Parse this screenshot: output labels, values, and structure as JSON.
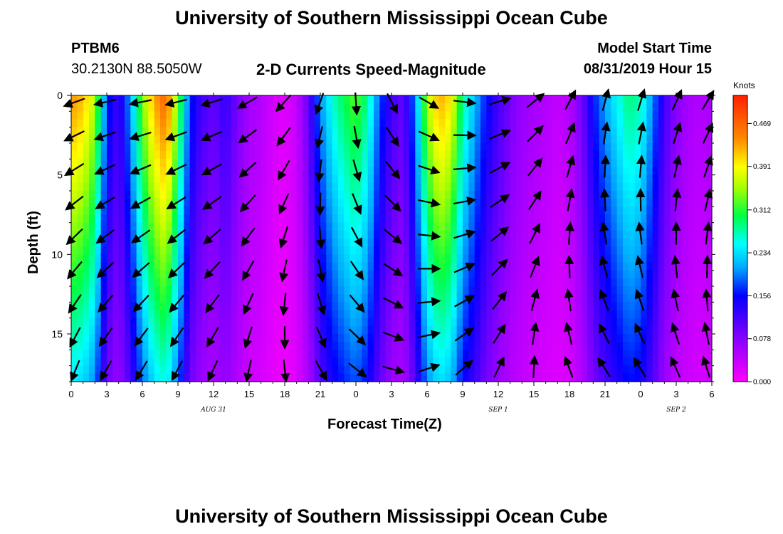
{
  "header": {
    "title_top": "University of Southern Mississippi Ocean Cube",
    "title_bottom": "University of Southern Mississippi Ocean Cube",
    "station": "PTBM6",
    "coords": "30.2130N 88.5050W",
    "model_label": "Model Start Time",
    "model_time": "08/31/2019 Hour 15"
  },
  "chart_data": {
    "type": "heatmap",
    "title": "2-D Currents Speed-Magnitude",
    "xlabel": "Forecast Time(Z)",
    "ylabel": "Depth (ft)",
    "x_tick_labels": [
      "0",
      "3",
      "6",
      "9",
      "12",
      "15",
      "18",
      "21",
      "0",
      "3",
      "6",
      "9",
      "12",
      "15",
      "18",
      "21",
      "0",
      "3",
      "6"
    ],
    "x_range_hours": [
      0,
      54
    ],
    "date_labels": [
      {
        "text": "AUG 31",
        "hour": 12
      },
      {
        "text": "SEP 1",
        "hour": 36
      },
      {
        "text": "SEP 2",
        "hour": 51
      }
    ],
    "y_tick_labels": [
      "0",
      "5",
      "10",
      "15"
    ],
    "y_ticks": [
      0,
      5,
      10,
      15
    ],
    "y_range_ft": [
      0,
      18
    ],
    "colorbar": {
      "unit": "Knots",
      "range": [
        0,
        0.52
      ],
      "tick_values": [
        0.0,
        0.078,
        0.156,
        0.234,
        0.312,
        0.391,
        0.469
      ],
      "tick_labels": [
        "0.000",
        "0.078",
        "0.156",
        "0.234",
        "0.312",
        "0.391",
        "0.469"
      ]
    },
    "grid": false,
    "speed_profile_by_hour": [
      {
        "hour": 0,
        "speed": 0.44
      },
      {
        "hour": 1,
        "speed": 0.42
      },
      {
        "hour": 2,
        "speed": 0.36
      },
      {
        "hour": 3,
        "speed": 0.17
      },
      {
        "hour": 4,
        "speed": 0.12
      },
      {
        "hour": 5,
        "speed": 0.21
      },
      {
        "hour": 6,
        "speed": 0.34
      },
      {
        "hour": 7,
        "speed": 0.43
      },
      {
        "hour": 8,
        "speed": 0.47
      },
      {
        "hour": 9,
        "speed": 0.34
      },
      {
        "hour": 10,
        "speed": 0.17
      },
      {
        "hour": 11,
        "speed": 0.12
      },
      {
        "hour": 12,
        "speed": 0.1
      },
      {
        "hour": 13,
        "speed": 0.13
      },
      {
        "hour": 14,
        "speed": 0.09
      },
      {
        "hour": 15,
        "speed": 0.06
      },
      {
        "hour": 16,
        "speed": 0.05
      },
      {
        "hour": 17,
        "speed": 0.03
      },
      {
        "hour": 18,
        "speed": 0.02
      },
      {
        "hour": 19,
        "speed": 0.04
      },
      {
        "hour": 20,
        "speed": 0.1
      },
      {
        "hour": 21,
        "speed": 0.2
      },
      {
        "hour": 22,
        "speed": 0.26
      },
      {
        "hour": 23,
        "speed": 0.3
      },
      {
        "hour": 24,
        "speed": 0.33
      },
      {
        "hour": 25,
        "speed": 0.28
      },
      {
        "hour": 26,
        "speed": 0.18
      },
      {
        "hour": 27,
        "speed": 0.12
      },
      {
        "hour": 28,
        "speed": 0.1
      },
      {
        "hour": 29,
        "speed": 0.2
      },
      {
        "hour": 30,
        "speed": 0.36
      },
      {
        "hour": 31,
        "speed": 0.43
      },
      {
        "hour": 32,
        "speed": 0.4
      },
      {
        "hour": 33,
        "speed": 0.28
      },
      {
        "hour": 34,
        "speed": 0.22
      },
      {
        "hour": 35,
        "speed": 0.16
      },
      {
        "hour": 36,
        "speed": 0.12
      },
      {
        "hour": 37,
        "speed": 0.09
      },
      {
        "hour": 38,
        "speed": 0.07
      },
      {
        "hour": 39,
        "speed": 0.06
      },
      {
        "hour": 40,
        "speed": 0.05
      },
      {
        "hour": 41,
        "speed": 0.04
      },
      {
        "hour": 42,
        "speed": 0.05
      },
      {
        "hour": 43,
        "speed": 0.09
      },
      {
        "hour": 44,
        "speed": 0.16
      },
      {
        "hour": 45,
        "speed": 0.21
      },
      {
        "hour": 46,
        "speed": 0.25
      },
      {
        "hour": 47,
        "speed": 0.29
      },
      {
        "hour": 48,
        "speed": 0.27
      },
      {
        "hour": 49,
        "speed": 0.2
      },
      {
        "hour": 50,
        "speed": 0.12
      },
      {
        "hour": 51,
        "speed": 0.08
      },
      {
        "hour": 52,
        "speed": 0.06
      },
      {
        "hour": 53,
        "speed": 0.05
      },
      {
        "hour": 54,
        "speed": 0.06
      }
    ],
    "depth_attenuation": 0.45,
    "vector_columns_hours": [
      0,
      3,
      6,
      9,
      12,
      15,
      18,
      21,
      24,
      27,
      30,
      33,
      36,
      39,
      42,
      45,
      48,
      51,
      54
    ],
    "vector_directions_deg": [
      200,
      195,
      190,
      185,
      185,
      185,
      185,
      185,
      185,
      190,
      195,
      200,
      210,
      220,
      230,
      240,
      250,
      260,
      270,
      280,
      300,
      310,
      320,
      330,
      340,
      350,
      0,
      10,
      20,
      30,
      30,
      30,
      25,
      20,
      15,
      10,
      5,
      0,
      350,
      340
    ]
  }
}
